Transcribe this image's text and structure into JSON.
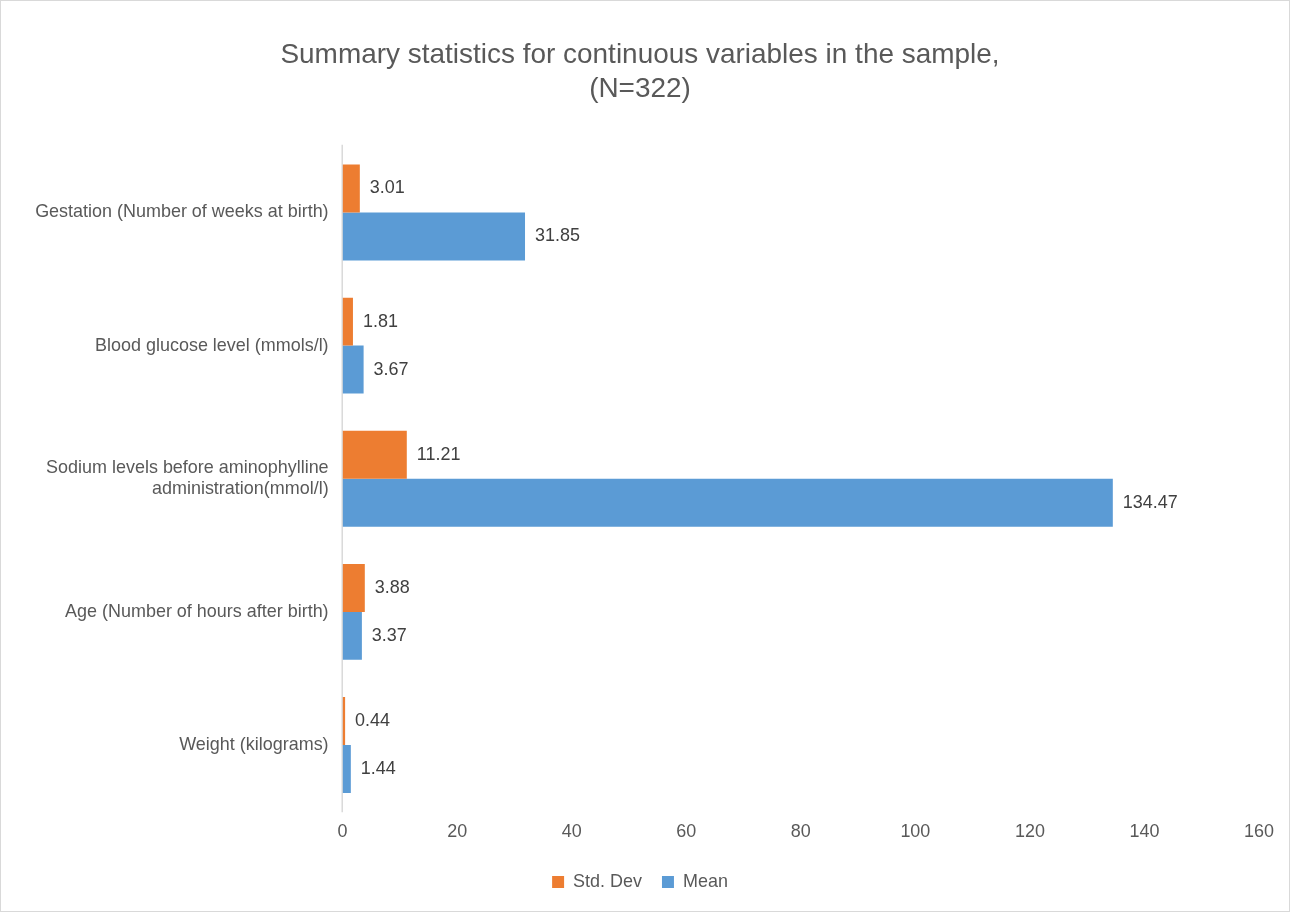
{
  "chart_data": {
    "type": "bar",
    "orientation": "horizontal",
    "title": "Summary statistics for continuous variables in the sample,\n(N=322)",
    "categories": [
      "Gestation (Number of weeks at birth)",
      "Blood glucose level (mmols/l)",
      "Sodium levels before aminophylline administration(mmol/l)",
      "Age (Number of hours after birth)",
      "Weight (kilograms)"
    ],
    "series": [
      {
        "name": "Std. Dev",
        "color": "#ed7d31",
        "values": [
          3.01,
          1.81,
          11.21,
          3.88,
          0.44
        ]
      },
      {
        "name": "Mean",
        "color": "#5b9bd5",
        "values": [
          31.85,
          3.67,
          134.47,
          3.37,
          1.44
        ]
      }
    ],
    "xlim": [
      0,
      160
    ],
    "xticks": [
      0,
      20,
      40,
      60,
      80,
      100,
      120,
      140,
      160
    ],
    "grid": false,
    "legend": "bottom",
    "data_labels": true
  }
}
